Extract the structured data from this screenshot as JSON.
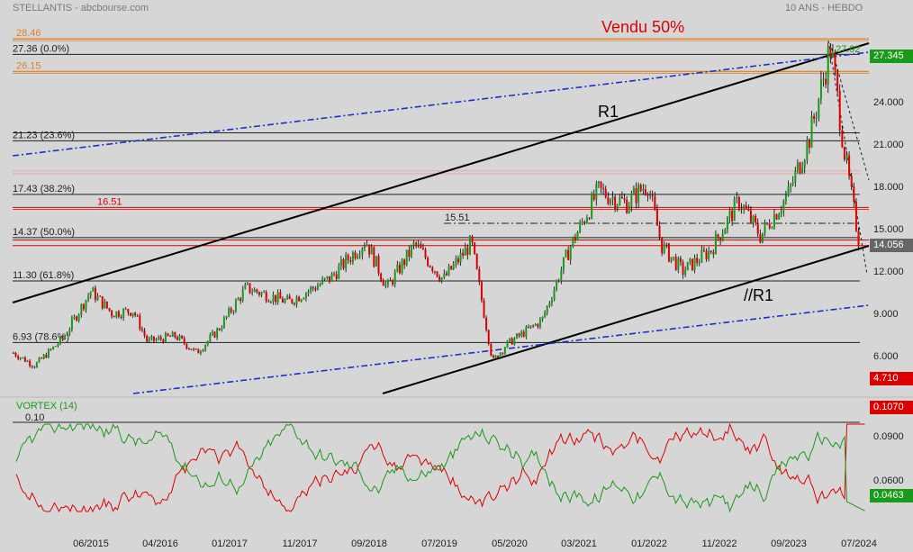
{
  "header": {
    "title": "STELLANTIS - abcbourse.com",
    "period": "10 ANS - HEBDO"
  },
  "annotations": {
    "sold": "Vendu 50%",
    "r1": "R1",
    "parallel_r1": "//R1",
    "level_1551": "15.51",
    "level_2792": "27.92"
  },
  "fib_levels": [
    {
      "label": "27.36  (0.0%)",
      "value": 27.36
    },
    {
      "label": "21.23  (23.6%)",
      "value": 21.23
    },
    {
      "label": "17.43  (38.2%)",
      "value": 17.43
    },
    {
      "label": "14.37  (50.0%)",
      "value": 14.37
    },
    {
      "label": "11.30  (61.8%)",
      "value": 11.3
    },
    {
      "label": "6.93  (78.6%)",
      "value": 6.93
    }
  ],
  "orange_levels": [
    {
      "label": "28.46",
      "value": 28.46
    },
    {
      "label": "26.15",
      "value": 26.15
    }
  ],
  "red_level": {
    "label": "16.51",
    "value": 16.51
  },
  "price_tags": {
    "last": "27.345",
    "current": "14.056",
    "low": "4.710",
    "colors": {
      "last": "#1a9a1a",
      "current": "#666666",
      "low": "#dd0000"
    }
  },
  "vortex": {
    "title": "VORTEX (14)",
    "level_label": "0.10",
    "tag_top": "0.1070",
    "tag_bottom": "0.0463",
    "colors": {
      "plus": "#1a9a1a",
      "minus": "#dd0000"
    }
  },
  "chart_data": {
    "type": "candlestick",
    "title": "STELLANTIS",
    "x_tick_labels": [
      "06/2015",
      "04/2016",
      "01/2017",
      "11/2017",
      "09/2018",
      "07/2019",
      "05/2020",
      "03/2021",
      "01/2022",
      "11/2022",
      "09/2023",
      "07/2024"
    ],
    "y_tick_labels": [
      "24.000",
      "21.000",
      "18.000",
      "15.000",
      "12.000",
      "9.000",
      "6.000"
    ],
    "ylim": [
      4.4,
      29.3
    ],
    "close_path": [
      {
        "date": "2014-07",
        "close": 6.2
      },
      {
        "date": "2014-10",
        "close": 5.3
      },
      {
        "date": "2015-02",
        "close": 7.2
      },
      {
        "date": "2015-06",
        "close": 10.6
      },
      {
        "date": "2015-09",
        "close": 9.0
      },
      {
        "date": "2015-12",
        "close": 9.2
      },
      {
        "date": "2016-02",
        "close": 7.0
      },
      {
        "date": "2016-06",
        "close": 7.4
      },
      {
        "date": "2016-09",
        "close": 6.2
      },
      {
        "date": "2016-12",
        "close": 7.8
      },
      {
        "date": "2017-04",
        "close": 10.8
      },
      {
        "date": "2017-10",
        "close": 9.8
      },
      {
        "date": "2018-04",
        "close": 11.5
      },
      {
        "date": "2018-09",
        "close": 14.2
      },
      {
        "date": "2018-12",
        "close": 10.8
      },
      {
        "date": "2019-04",
        "close": 13.9
      },
      {
        "date": "2019-08",
        "close": 11.4
      },
      {
        "date": "2019-12",
        "close": 14.0
      },
      {
        "date": "2020-03",
        "close": 5.6
      },
      {
        "date": "2020-05",
        "close": 6.8
      },
      {
        "date": "2020-10",
        "close": 8.5
      },
      {
        "date": "2021-02",
        "close": 13.7
      },
      {
        "date": "2021-06",
        "close": 17.7
      },
      {
        "date": "2021-10",
        "close": 16.8
      },
      {
        "date": "2022-01",
        "close": 18.2
      },
      {
        "date": "2022-03",
        "close": 13.8
      },
      {
        "date": "2022-06",
        "close": 12.0
      },
      {
        "date": "2022-10",
        "close": 13.5
      },
      {
        "date": "2023-02",
        "close": 17.0
      },
      {
        "date": "2023-05",
        "close": 14.5
      },
      {
        "date": "2023-09",
        "close": 17.5
      },
      {
        "date": "2023-12",
        "close": 21.5
      },
      {
        "date": "2024-03",
        "close": 27.9
      },
      {
        "date": "2024-05",
        "close": 20.2
      },
      {
        "date": "2024-07",
        "close": 14.06
      }
    ],
    "vortex_series": [
      {
        "name": "VI+",
        "color": "#1a9a1a"
      },
      {
        "name": "VI-",
        "color": "#dd0000"
      }
    ]
  }
}
